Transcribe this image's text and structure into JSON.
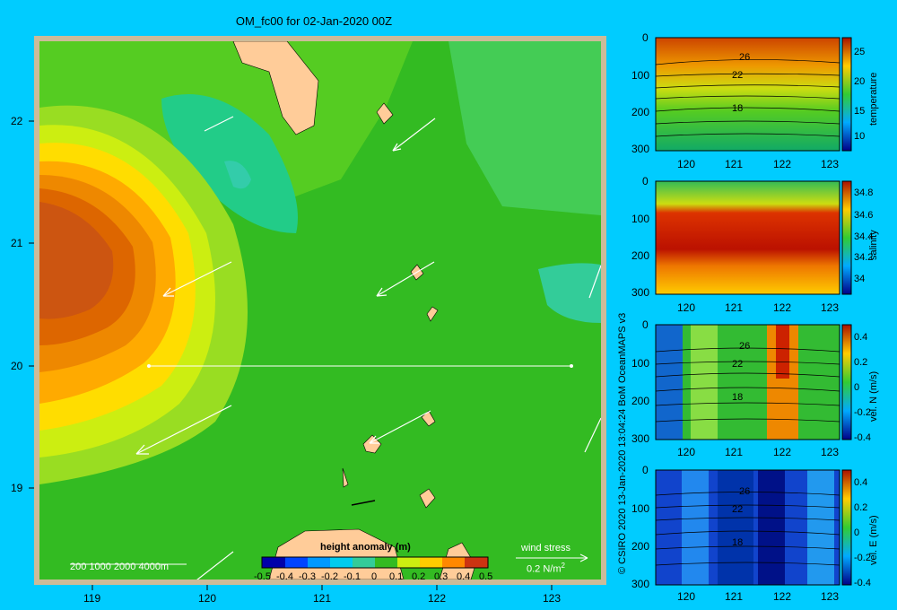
{
  "title": "OM_fc00 for 02-Jan-2020 00Z",
  "credit": "© CSIRO 2020  13-Jan-2020 13:04:24 BoM OceanMAPS v3",
  "map": {
    "x_ticks": [
      "119",
      "120",
      "121",
      "122",
      "123"
    ],
    "y_ticks": [
      "22",
      "21",
      "20",
      "19"
    ],
    "depth_legend": "200  1000  2000  4000m",
    "colorbar_title": "height anomaly  (m)",
    "colorbar_ticks": [
      "-0.5",
      "-0.4",
      "-0.3",
      "-0.2",
      "-0.1",
      "0",
      "0.1",
      "0.2",
      "0.3",
      "0.4",
      "0.5"
    ],
    "wind_label": "wind stress",
    "wind_scale": "0.2 N/m",
    "wind_scale_sup": "2"
  },
  "panels": [
    {
      "name": "temperature",
      "cb_label": "temperature",
      "cb_ticks": [
        "25",
        "20",
        "15",
        "10"
      ],
      "contour_labels": [
        "26",
        "22",
        "18"
      ]
    },
    {
      "name": "salinity",
      "cb_label": "salinity",
      "cb_ticks": [
        "34.8",
        "34.6",
        "34.4",
        "34.2",
        "34"
      ],
      "contour_labels": []
    },
    {
      "name": "vel-n",
      "cb_label": "vel. N (m/s)",
      "cb_ticks": [
        "0.4",
        "0.2",
        "0",
        "-0.2",
        "-0.4"
      ],
      "contour_labels": [
        "26",
        "22",
        "18"
      ]
    },
    {
      "name": "vel-e",
      "cb_label": "vel. E (m/s)",
      "cb_ticks": [
        "0.4",
        "0.2",
        "0",
        "-0.2",
        "-0.4"
      ],
      "contour_labels": [
        "26",
        "22",
        "18"
      ]
    }
  ],
  "section_x_ticks": [
    "120",
    "121",
    "122",
    "123"
  ],
  "section_y_ticks": [
    "0",
    "100",
    "200",
    "300"
  ]
}
